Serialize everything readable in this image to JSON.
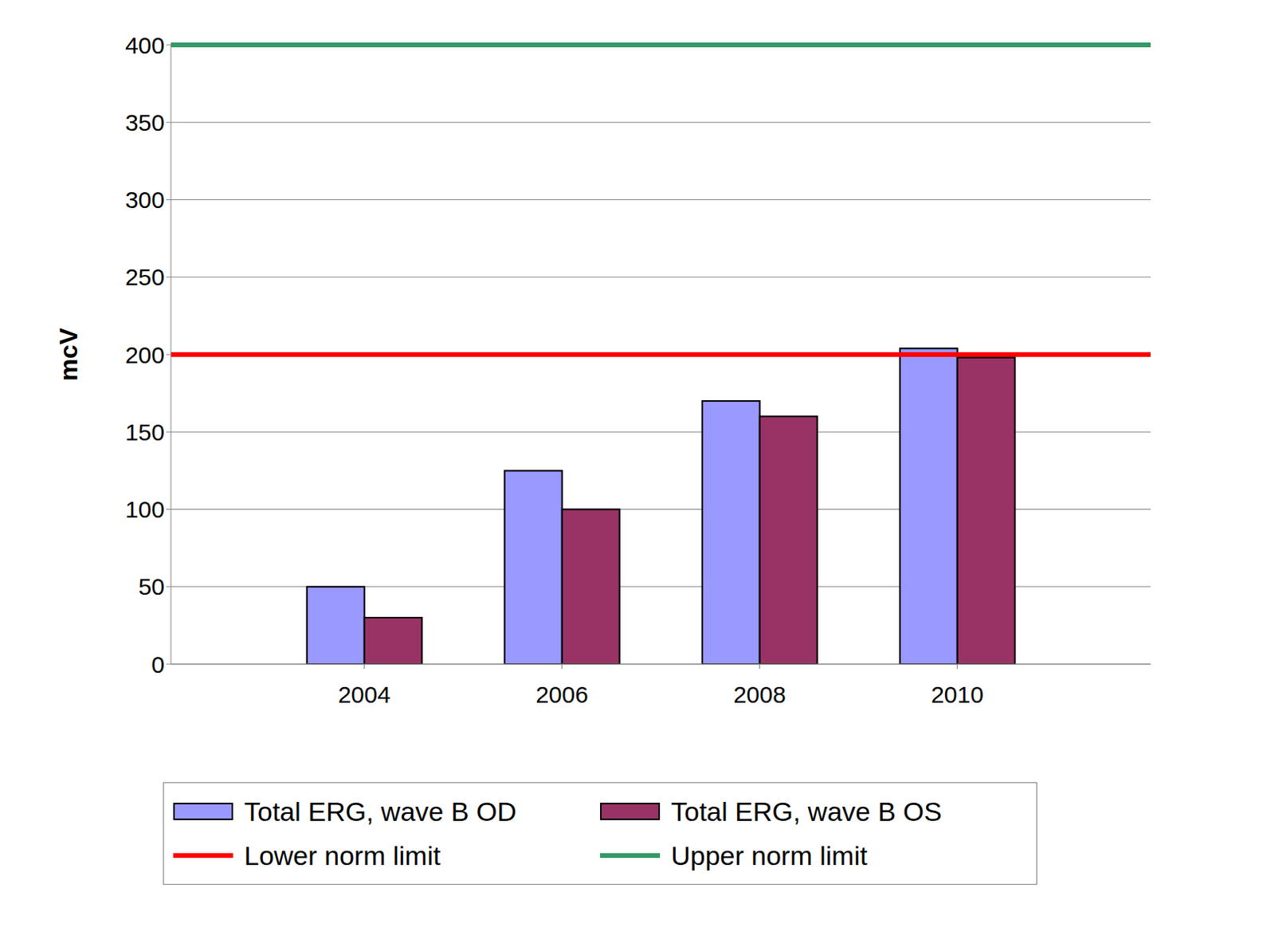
{
  "chart_data": {
    "type": "bar",
    "y_label": "mcV",
    "categories": [
      "2004",
      "2006",
      "2008",
      "2010"
    ],
    "series": [
      {
        "name": "Total ERG, wave B OD",
        "color": "#9999ff",
        "values": [
          50,
          125,
          170,
          204
        ]
      },
      {
        "name": "Total ERG, wave B OS",
        "color": "#993366",
        "values": [
          30,
          100,
          160,
          198
        ]
      }
    ],
    "reference_lines": [
      {
        "name": "Lower norm limit",
        "color": "#ff0000",
        "value": 200
      },
      {
        "name": "Upper norm limit",
        "color": "#339966",
        "value": 400
      }
    ],
    "ylim": [
      0,
      400
    ],
    "yticks": [
      0,
      50,
      100,
      150,
      200,
      250,
      300,
      350,
      400
    ],
    "grid": true,
    "legend": "bottom"
  }
}
